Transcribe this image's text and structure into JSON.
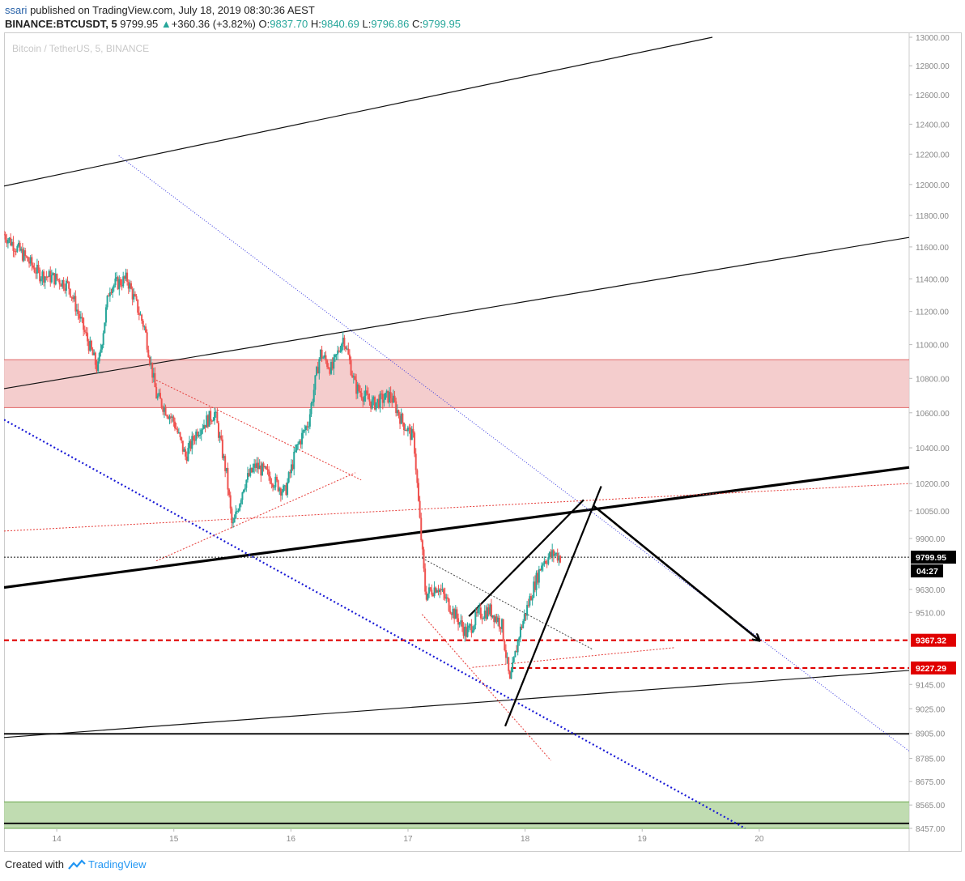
{
  "header": {
    "user": "ssari",
    "published_text": " published on TradingView.com, July 18, 2019 08:30:36 AEST",
    "symbol_line": "BINANCE:BTCUSDT, 5",
    "last": "9799.95",
    "change_arrow": "▲",
    "change": "+360.36 (+3.82%)",
    "o_label": "O:",
    "o": "9837.70",
    "h_label": "H:",
    "h": "9840.69",
    "l_label": "L:",
    "l": "9796.86",
    "c_label": "C:",
    "c": "9799.95"
  },
  "footer": {
    "created_with": "Created with",
    "brand": "TradingView"
  },
  "colors": {
    "candle_up": "#26a69a",
    "candle_down": "#ef5350",
    "resistance_zone": "#f2c4c4",
    "support_zone": "#b5d6a3",
    "red_level": "#e00000",
    "blue_trend": "#1a1ad6",
    "axis_text": "#888888"
  },
  "chart_data": {
    "type": "candlestick",
    "title": "Bitcoin / TetherUS, 5, BINANCE",
    "y_axis": {
      "scale": "log",
      "range": [
        8457,
        13000
      ],
      "tick_labels": [
        "13000.00",
        "12800.00",
        "12600.00",
        "12400.00",
        "12200.00",
        "12000.00",
        "11800.00",
        "11600.00",
        "11400.00",
        "11200.00",
        "11000.00",
        "10800.00",
        "10600.00",
        "10400.00",
        "10200.00",
        "10050.00",
        "9900.00",
        "9630.00",
        "9510.00",
        "9145.00",
        "9025.00",
        "8905.00",
        "8785.00",
        "8675.00",
        "8565.00",
        "8457.00"
      ]
    },
    "x_axis": {
      "unit": "day (July 2019)",
      "range": [
        13.55,
        21.28
      ],
      "tick_labels": [
        "14",
        "15",
        "16",
        "17",
        "18",
        "19",
        "20"
      ]
    },
    "price_labels": [
      {
        "value": 9799.95,
        "text": "9799.95",
        "style": "last-price"
      },
      {
        "value": 9367.32,
        "text": "9367.32",
        "style": "red-level"
      },
      {
        "value": 9227.29,
        "text": "9227.29",
        "style": "red-level"
      }
    ],
    "countdown": "04:27",
    "close_path": [
      [
        13.55,
        11680
      ],
      [
        13.7,
        11560
      ],
      [
        13.85,
        11430
      ],
      [
        14.0,
        11400
      ],
      [
        14.1,
        11360
      ],
      [
        14.25,
        11050
      ],
      [
        14.35,
        10850
      ],
      [
        14.45,
        11350
      ],
      [
        14.6,
        11400
      ],
      [
        14.75,
        11100
      ],
      [
        14.85,
        10700
      ],
      [
        15.0,
        10550
      ],
      [
        15.1,
        10350
      ],
      [
        15.2,
        10500
      ],
      [
        15.35,
        10600
      ],
      [
        15.45,
        10250
      ],
      [
        15.5,
        9950
      ],
      [
        15.6,
        10200
      ],
      [
        15.7,
        10300
      ],
      [
        15.8,
        10250
      ],
      [
        15.95,
        10150
      ],
      [
        16.05,
        10400
      ],
      [
        16.15,
        10550
      ],
      [
        16.25,
        10950
      ],
      [
        16.35,
        10850
      ],
      [
        16.45,
        11050
      ],
      [
        16.55,
        10750
      ],
      [
        16.7,
        10650
      ],
      [
        16.85,
        10700
      ],
      [
        16.95,
        10550
      ],
      [
        17.05,
        10450
      ],
      [
        17.1,
        10000
      ],
      [
        17.15,
        9600
      ],
      [
        17.25,
        9650
      ],
      [
        17.35,
        9550
      ],
      [
        17.5,
        9400
      ],
      [
        17.6,
        9500
      ],
      [
        17.7,
        9520
      ],
      [
        17.8,
        9450
      ],
      [
        17.87,
        9150
      ],
      [
        17.95,
        9400
      ],
      [
        18.05,
        9600
      ],
      [
        18.15,
        9780
      ],
      [
        18.25,
        9820
      ],
      [
        18.3,
        9800
      ]
    ],
    "zones": [
      {
        "name": "resistance-zone",
        "from": 10630,
        "to": 10910,
        "color": "#f2c4c4"
      },
      {
        "name": "support-zone",
        "from": 8457,
        "to": 8580,
        "color": "#b5d6a3"
      }
    ],
    "horizontal_levels": [
      {
        "value": 9800,
        "style": "black-dotted"
      },
      {
        "value": 9367.32,
        "style": "red-dashed"
      },
      {
        "value": 9227.29,
        "style": "red-dashed",
        "from_x": 17.88
      },
      {
        "value": 8903,
        "style": "black-solid"
      },
      {
        "value": 8480,
        "style": "black-solid"
      }
    ],
    "trendlines": [
      {
        "name": "upper-channel",
        "style": "black-thin",
        "p1": [
          13.55,
          11990
        ],
        "p2": [
          19.6,
          13000
        ]
      },
      {
        "name": "mid-channel",
        "style": "black-thin",
        "p1": [
          13.55,
          10740
        ],
        "p2": [
          21.28,
          11660
        ]
      },
      {
        "name": "lower-channel",
        "style": "black-thin",
        "p1": [
          13.55,
          8885
        ],
        "p2": [
          21.28,
          9215
        ]
      },
      {
        "name": "thick-trendline",
        "style": "black-thick",
        "p1": [
          13.55,
          9640
        ],
        "p2": [
          21.28,
          10290
        ]
      },
      {
        "name": "blue-descending",
        "style": "blue-dotted",
        "p1": [
          13.55,
          10560
        ],
        "p2": [
          19.88,
          8457
        ]
      },
      {
        "name": "faint-blue-descending",
        "style": "blue-thin-dotted",
        "p1": [
          14.53,
          12190
        ],
        "p2": [
          21.28,
          8820
        ]
      },
      {
        "name": "red-triangle-top",
        "style": "red-dotted",
        "p1": [
          14.85,
          10790
        ],
        "p2": [
          16.6,
          10220
        ]
      },
      {
        "name": "red-triangle-bottom",
        "style": "red-dotted",
        "p1": [
          14.85,
          9780
        ],
        "p2": [
          16.55,
          10260
        ]
      },
      {
        "name": "red-long-line",
        "style": "red-dotted",
        "p1": [
          13.55,
          9940
        ],
        "p2": [
          21.28,
          10200
        ]
      },
      {
        "name": "red-lower-descent",
        "style": "red-dotted",
        "p1": [
          17.12,
          9500
        ],
        "p2": [
          18.22,
          8775
        ]
      },
      {
        "name": "red-lower-rise",
        "style": "red-dotted",
        "p1": [
          17.55,
          9230
        ],
        "p2": [
          19.28,
          9330
        ]
      },
      {
        "name": "black-dotted-diag",
        "style": "black-dotted",
        "p1": [
          17.12,
          9795
        ],
        "p2": [
          18.58,
          9320
        ]
      },
      {
        "name": "wedge-upper",
        "style": "black-medium",
        "p1": [
          17.52,
          9490
        ],
        "p2": [
          18.5,
          10110
        ]
      },
      {
        "name": "wedge-lower",
        "style": "black-medium",
        "p1": [
          17.83,
          8940
        ],
        "p2": [
          18.65,
          10185
        ]
      },
      {
        "name": "forecast-arrow",
        "style": "black-arrow",
        "p1": [
          18.58,
          10080
        ],
        "p2": [
          20.0,
          9367
        ]
      }
    ]
  }
}
